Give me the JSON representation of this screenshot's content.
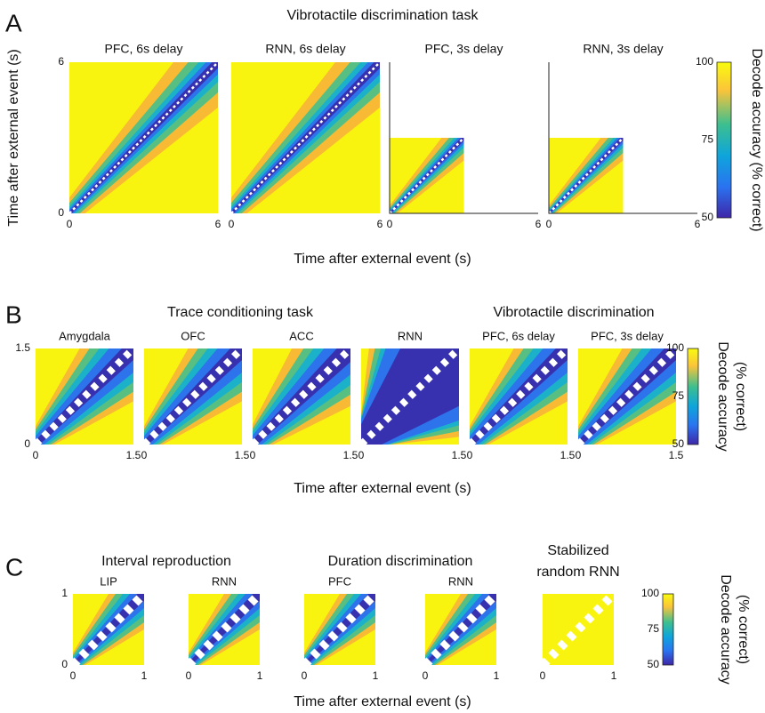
{
  "panels": [
    {
      "letter": "A",
      "titles": [
        "Vibrotactile discrimination task"
      ],
      "plots": [
        "PFC, 6s delay",
        "RNN, 6s delay",
        "PFC, 3s delay",
        "RNN, 3s delay"
      ],
      "ticks": [
        0,
        6
      ],
      "xlabel": "Time after external event (s)",
      "ylabel": "Time after external event (s)",
      "colorbar": {
        "label": [
          "Decode accuracy (% correct)"
        ],
        "ticks": [
          100,
          75,
          50
        ]
      }
    },
    {
      "letter": "B",
      "titles": [
        "Trace conditioning task",
        "Vibrotactile discrimination"
      ],
      "plots": [
        "Amygdala",
        "OFC",
        "ACC",
        "RNN",
        "PFC, 6s delay",
        "PFC, 3s delay"
      ],
      "ticks": [
        0,
        1.5
      ],
      "xlabel": "Time after external event (s)",
      "colorbar": {
        "label": [
          "Decode accuracy",
          "(% correct)"
        ],
        "ticks": [
          100,
          75,
          50
        ]
      }
    },
    {
      "letter": "C",
      "titles": [
        "Interval reproduction",
        "Duration discrimination"
      ],
      "extra_title": [
        "Stabilized",
        "random RNN"
      ],
      "plots": [
        "LIP",
        "RNN",
        "PFC",
        "RNN"
      ],
      "ticks": [
        0,
        1
      ],
      "xlabel": "Time after external event (s)",
      "colorbar": {
        "label": [
          "Decode accuracy",
          "(% correct)"
        ],
        "ticks": [
          100,
          75,
          50
        ]
      }
    }
  ]
}
